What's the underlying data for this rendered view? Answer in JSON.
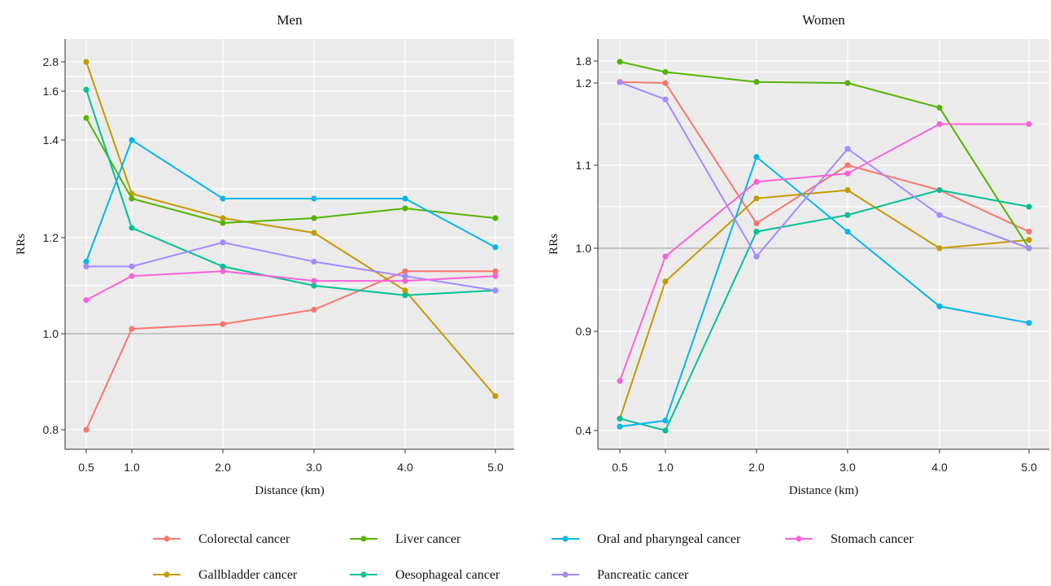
{
  "chart_data": [
    {
      "type": "line",
      "title": "Men",
      "xlabel": "Distance (km)",
      "ylabel": "RRs",
      "x": [
        0.5,
        1.0,
        2.0,
        3.0,
        4.0,
        5.0
      ],
      "x_tick_labels": [
        "0.5",
        "1.0",
        "2.0",
        "3.0",
        "4.0",
        "5.0"
      ],
      "y_ticks": [
        {
          "label": "0.8",
          "value": 0.8
        },
        {
          "label": "1.0",
          "value": 1.0
        },
        {
          "label": "1.2",
          "value": 1.2
        },
        {
          "label": "1.4",
          "value": 1.4
        },
        {
          "label": "1.6",
          "value": 1.6
        },
        {
          "label": "2.8",
          "value": 2.8
        }
      ],
      "reference_line": 1.0,
      "series": [
        {
          "name": "Colorectal cancer",
          "color": "#F8766D",
          "values": [
            0.8,
            1.01,
            1.02,
            1.05,
            1.13,
            1.13
          ]
        },
        {
          "name": "Gallbladder cancer",
          "color": "#C49A00",
          "values": [
            2.8,
            1.29,
            1.24,
            1.21,
            1.09,
            0.87
          ]
        },
        {
          "name": "Liver cancer",
          "color": "#53B400",
          "values": [
            1.49,
            1.28,
            1.23,
            1.24,
            1.26,
            1.24
          ]
        },
        {
          "name": "Oesophageal cancer",
          "color": "#00C094",
          "values": [
            1.66,
            1.22,
            1.14,
            1.1,
            1.08,
            1.09
          ]
        },
        {
          "name": "Oral and pharyngeal cancer",
          "color": "#00B6EB",
          "values": [
            1.15,
            1.4,
            1.28,
            1.28,
            1.28,
            1.18
          ]
        },
        {
          "name": "Pancreatic cancer",
          "color": "#A58AFF",
          "values": [
            1.14,
            1.14,
            1.19,
            1.15,
            1.12,
            1.09
          ]
        },
        {
          "name": "Stomach cancer",
          "color": "#FB61D7",
          "values": [
            1.07,
            1.12,
            1.13,
            1.11,
            1.11,
            1.12
          ]
        }
      ]
    },
    {
      "type": "line",
      "title": "Women",
      "xlabel": "Distance (km)",
      "ylabel": "RRs",
      "x": [
        0.5,
        1.0,
        2.0,
        3.0,
        4.0,
        5.0
      ],
      "x_tick_labels": [
        "0.5",
        "1.0",
        "2.0",
        "3.0",
        "4.0",
        "5.0"
      ],
      "y_ticks": [
        {
          "label": "0.4",
          "value": 0.4
        },
        {
          "label": "0.9",
          "value": 0.9
        },
        {
          "label": "1.0",
          "value": 1.0
        },
        {
          "label": "1.1",
          "value": 1.1
        },
        {
          "label": "1.2",
          "value": 1.2
        },
        {
          "label": "1.8",
          "value": 1.8
        }
      ],
      "reference_line": 1.0,
      "series": [
        {
          "name": "Colorectal cancer",
          "color": "#F8766D",
          "values": [
            1.23,
            1.2,
            1.03,
            1.1,
            1.07,
            1.02
          ]
        },
        {
          "name": "Gallbladder cancer",
          "color": "#C49A00",
          "values": [
            0.46,
            0.96,
            1.06,
            1.07,
            1.0,
            1.01
          ]
        },
        {
          "name": "Liver cancer",
          "color": "#53B400",
          "values": [
            1.78,
            1.5,
            1.23,
            1.2,
            1.17,
            1.0
          ]
        },
        {
          "name": "Oesophageal cancer",
          "color": "#00C094",
          "values": [
            0.46,
            0.4,
            1.02,
            1.04,
            1.07,
            1.05
          ]
        },
        {
          "name": "Oral and pharyngeal cancer",
          "color": "#00B6EB",
          "values": [
            0.42,
            0.45,
            1.11,
            1.02,
            0.93,
            0.91
          ]
        },
        {
          "name": "Pancreatic cancer",
          "color": "#A58AFF",
          "values": [
            1.22,
            1.18,
            0.99,
            1.12,
            1.04,
            1.0
          ]
        },
        {
          "name": "Stomach cancer",
          "color": "#FB61D7",
          "values": [
            0.65,
            0.99,
            1.08,
            1.09,
            1.15,
            1.15
          ]
        }
      ]
    }
  ],
  "legend": [
    {
      "name": "Colorectal cancer",
      "color": "#F8766D"
    },
    {
      "name": "Liver cancer",
      "color": "#53B400"
    },
    {
      "name": "Oral and pharyngeal cancer",
      "color": "#00B6EB"
    },
    {
      "name": "Stomach cancer",
      "color": "#FB61D7"
    },
    {
      "name": "Gallbladder cancer",
      "color": "#C49A00"
    },
    {
      "name": "Oesophageal cancer",
      "color": "#00C094"
    },
    {
      "name": "Pancreatic cancer",
      "color": "#A58AFF"
    }
  ],
  "legend_placement": "bottom"
}
